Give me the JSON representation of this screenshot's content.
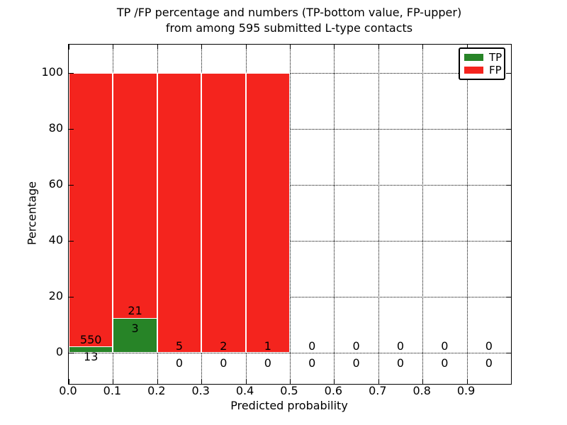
{
  "title": {
    "line1": "TP /FP percentage and numbers (TP-bottom value, FP-upper)",
    "line2": "from among 595 submitted L-type contacts"
  },
  "axes": {
    "x_label": "Predicted probability",
    "y_label": "Percentage",
    "x_tick_labels": [
      "0.0",
      "0.1",
      "0.2",
      "0.3",
      "0.4",
      "0.5",
      "0.6",
      "0.7",
      "0.8",
      "0.9"
    ],
    "y_tick_labels": [
      "0",
      "20",
      "40",
      "60",
      "80",
      "100"
    ]
  },
  "legend": {
    "items": [
      {
        "label": "TP",
        "color": "#278427"
      },
      {
        "label": "FP",
        "color": "#f4241e"
      }
    ]
  },
  "colors": {
    "tp_green": "#278427",
    "fp_red": "#f4241e",
    "grid": "#000000",
    "text": "#000000",
    "background": "#ffffff"
  },
  "chart_data": {
    "type": "bar",
    "stacked": true,
    "title": "TP /FP percentage and numbers (TP-bottom value, FP-upper) from among 595 submitted L-type contacts",
    "xlabel": "Predicted probability",
    "ylabel": "Percentage",
    "xlim": [
      0.0,
      1.0
    ],
    "ylim": [
      -11,
      110
    ],
    "bin_width": 0.1,
    "grid": "dotted",
    "legend_position": "upper right",
    "total_contacts": 595,
    "categories": [
      "0.0-0.1",
      "0.1-0.2",
      "0.2-0.3",
      "0.3-0.4",
      "0.4-0.5",
      "0.5-0.6",
      "0.6-0.7",
      "0.7-0.8",
      "0.8-0.9",
      "0.9-1.0"
    ],
    "series": [
      {
        "name": "TP",
        "color": "#278427",
        "counts": [
          13,
          3,
          0,
          0,
          0,
          0,
          0,
          0,
          0,
          0
        ]
      },
      {
        "name": "FP",
        "color": "#f4241e",
        "counts": [
          550,
          21,
          5,
          2,
          1,
          0,
          0,
          0,
          0,
          0
        ]
      }
    ],
    "percent_heights": {
      "TP": [
        2.31,
        12.5,
        0,
        0,
        0,
        0,
        0,
        0,
        0,
        0
      ],
      "FP": [
        97.69,
        87.5,
        100,
        100,
        100,
        0,
        0,
        0,
        0,
        0
      ]
    }
  }
}
